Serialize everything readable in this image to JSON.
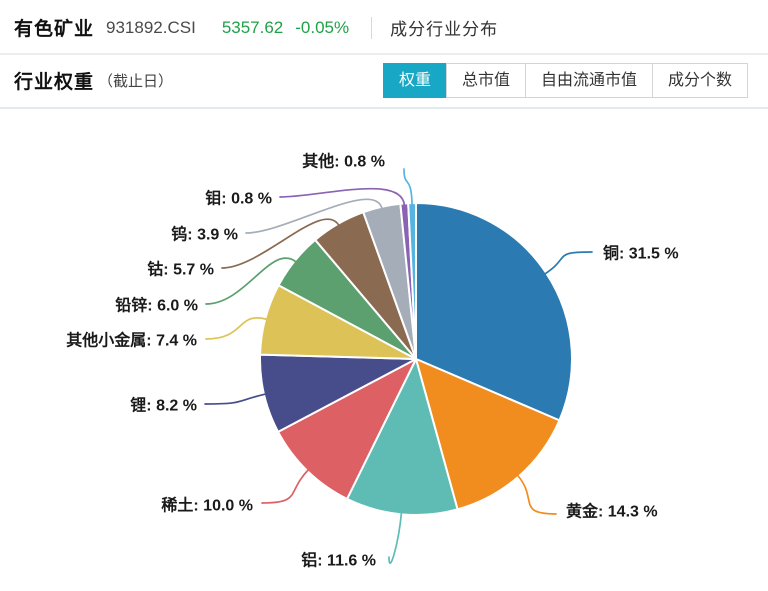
{
  "header": {
    "title": "有色矿业",
    "code": "931892.CSI",
    "price": "5357.62",
    "change": "-0.05%",
    "quote_color": "#22a049",
    "section_title": "成分行业分布"
  },
  "panel": {
    "title": "行业权重",
    "subtitle": "（截止日）",
    "active_tab_color": "#18a8c6",
    "tabs": [
      {
        "label": "权重",
        "active": true
      },
      {
        "label": "总市值",
        "active": false
      },
      {
        "label": "自由流通市值",
        "active": false
      },
      {
        "label": "成分个数",
        "active": false
      }
    ]
  },
  "chart_data": {
    "type": "pie",
    "title": "",
    "legend_position": "none",
    "direction": "clockwise",
    "start_angle": "top",
    "label_format": "{name}: {value} %",
    "slices": [
      {
        "name": "铜",
        "value": 31.5,
        "color": "#2b7bb2"
      },
      {
        "name": "黄金",
        "value": 14.3,
        "color": "#f18c1f"
      },
      {
        "name": "铝",
        "value": 11.6,
        "color": "#5fbcb5"
      },
      {
        "name": "稀土",
        "value": 10.0,
        "color": "#dd6065"
      },
      {
        "name": "锂",
        "value": 8.2,
        "color": "#474d8b"
      },
      {
        "name": "其他小金属",
        "value": 7.4,
        "color": "#ddc357"
      },
      {
        "name": "铅锌",
        "value": 6.0,
        "color": "#5ba06e"
      },
      {
        "name": "钴",
        "value": 5.7,
        "color": "#8a6a51"
      },
      {
        "name": "钨",
        "value": 3.9,
        "color": "#a5adb8"
      },
      {
        "name": "钼",
        "value": 0.8,
        "color": "#8a63b2"
      },
      {
        "name": "其他",
        "value": 0.8,
        "color": "#56b5e0"
      }
    ]
  }
}
